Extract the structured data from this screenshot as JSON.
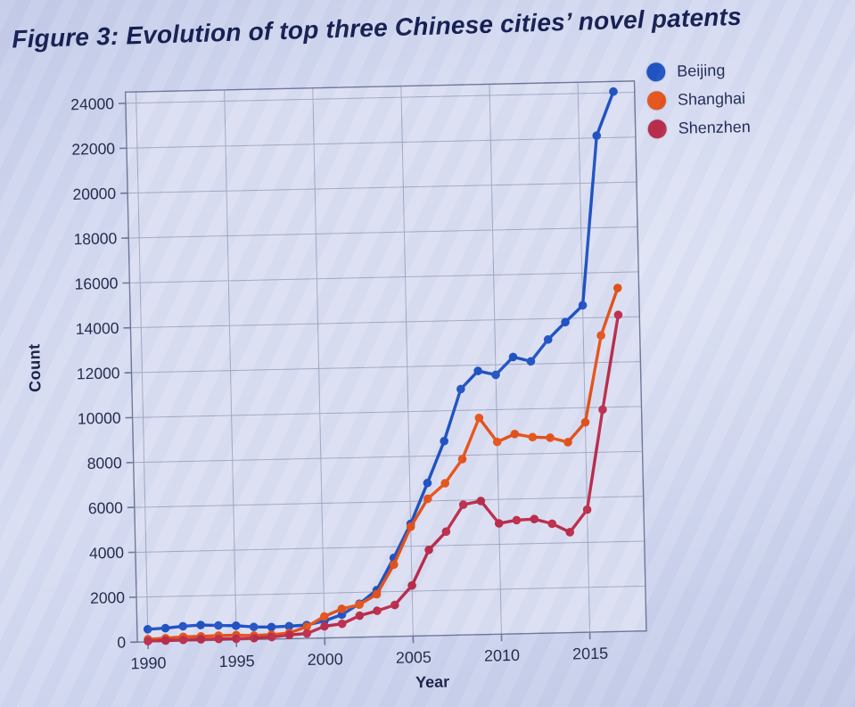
{
  "title": "Figure 3: Evolution of top three Chinese cities’ novel patents",
  "colors": {
    "background": "#cdd4ee",
    "plot_fill": "#dbdff2",
    "grid": "#96a0bd",
    "frame": "#6b7697",
    "tick_text": "#1e2746",
    "title_text": "#111b4e",
    "beijing": "#1d50c2",
    "shanghai": "#e55017",
    "shenzhen": "#ba2a48"
  },
  "chart_data": {
    "type": "line",
    "title": "Figure 3: Evolution of top three Chinese cities’ novel patents",
    "xlabel": "Year",
    "ylabel": "Count",
    "grid": true,
    "legend_position": "top-right",
    "xlim": [
      1989.4,
      2018.2
    ],
    "ylim": [
      0,
      24500
    ],
    "x_ticks": [
      1990,
      1995,
      2000,
      2005,
      2010,
      2015
    ],
    "y_ticks": [
      0,
      2000,
      4000,
      6000,
      8000,
      10000,
      12000,
      14000,
      16000,
      18000,
      20000,
      22000,
      24000
    ],
    "x": [
      1990,
      1991,
      1992,
      1993,
      1994,
      1995,
      1996,
      1997,
      1998,
      1999,
      2000,
      2001,
      2002,
      2003,
      2004,
      2005,
      2006,
      2007,
      2008,
      2009,
      2010,
      2011,
      2012,
      2013,
      2014,
      2015,
      2016,
      2017
    ],
    "series": [
      {
        "name": "Beijing",
        "color": "#1d50c2",
        "values": [
          560,
          590,
          660,
          700,
          660,
          630,
          560,
          540,
          560,
          590,
          760,
          1020,
          1490,
          2080,
          3500,
          5000,
          6800,
          8650,
          10950,
          11740,
          11550,
          12330,
          12120,
          13070,
          13830,
          14560,
          22100,
          24050
        ]
      },
      {
        "name": "Shanghai",
        "color": "#e55017",
        "values": [
          120,
          140,
          190,
          190,
          210,
          210,
          180,
          200,
          260,
          520,
          960,
          1280,
          1450,
          1900,
          3200,
          4870,
          6100,
          6770,
          7830,
          9650,
          8560,
          8900,
          8740,
          8700,
          8480,
          9350,
          13200,
          15300
        ]
      },
      {
        "name": "Shenzhen",
        "color": "#ba2a48",
        "values": [
          30,
          40,
          50,
          60,
          60,
          50,
          60,
          90,
          170,
          220,
          520,
          615,
          960,
          1160,
          1400,
          2250,
          3820,
          4620,
          5800,
          5950,
          4930,
          5060,
          5090,
          4870,
          4470,
          5460,
          9900,
          14100
        ]
      }
    ]
  }
}
